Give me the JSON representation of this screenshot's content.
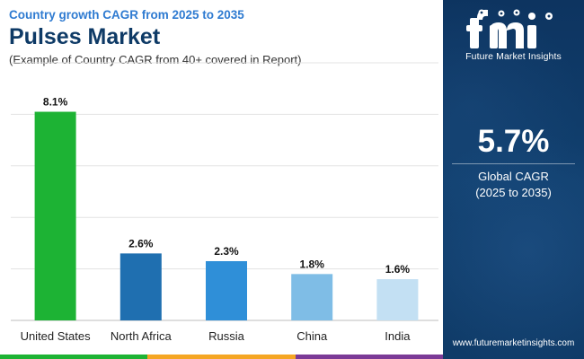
{
  "header": {
    "subtitle": "Country growth CAGR from 2025 to 2035",
    "title": "Pulses Market",
    "note": "(Example of Country CAGR from 40+ covered in Report)"
  },
  "chart_data": {
    "type": "bar",
    "categories": [
      "United States",
      "North Africa",
      "Russia",
      "China",
      "India"
    ],
    "values": [
      8.1,
      2.6,
      2.3,
      1.8,
      1.6
    ],
    "data_labels": [
      "8.1%",
      "2.6%",
      "2.3%",
      "1.8%",
      "1.6%"
    ],
    "bar_colors": [
      "#1db334",
      "#1f6fb0",
      "#2f8fd8",
      "#7fbde6",
      "#c3e0f3"
    ],
    "ylim": [
      0,
      10
    ],
    "grid": true,
    "title": "",
    "xlabel": "",
    "ylabel": ""
  },
  "panel": {
    "logo_icon": "fmi-logo-icon",
    "logo_text": "Future Market Insights",
    "cagr_value": "5.7%",
    "cagr_label_line1": "Global CAGR",
    "cagr_label_line2": "(2025 to 2035)",
    "website": "www.futuremarketinsights.com"
  },
  "colors": {
    "title": "#0e3a66",
    "subtitle": "#2f7bd1",
    "panel_bg": "#0d3460",
    "bottom_bar": [
      "#1db334",
      "#1f6fb0",
      "#7b3a96"
    ]
  }
}
